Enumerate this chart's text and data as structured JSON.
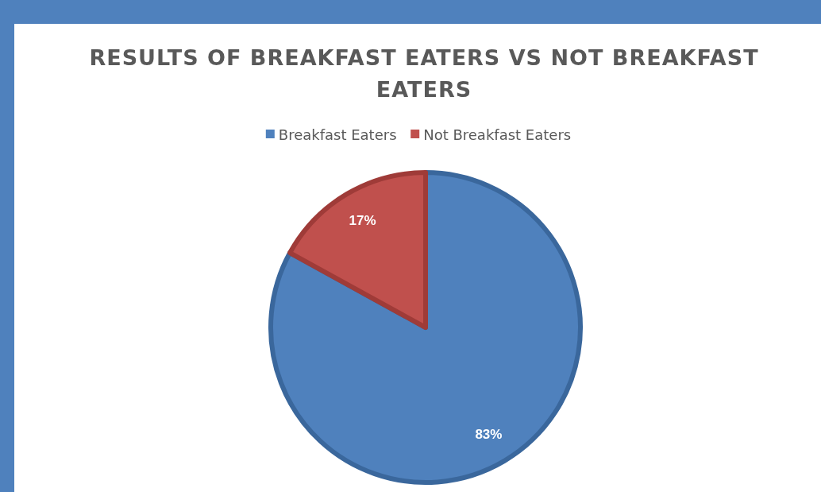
{
  "chart_data": {
    "type": "pie",
    "title": "RESULTS OF BREAKFAST EATERS VS NOT BREAKFAST EATERS",
    "categories": [
      "Breakfast Eaters",
      "Not Breakfast Eaters"
    ],
    "values": [
      83,
      17
    ],
    "colors": [
      "#4f81bd",
      "#c0504d"
    ],
    "value_labels": [
      "83%",
      "17%"
    ],
    "legend": "top"
  }
}
